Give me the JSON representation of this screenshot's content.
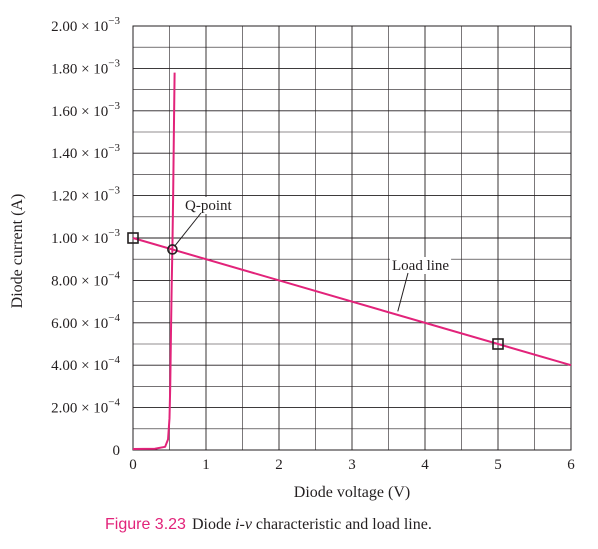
{
  "chart_data": {
    "type": "line",
    "title": "",
    "xlabel": "Diode voltage (V)",
    "ylabel": "Diode current (A)",
    "xlim": [
      0,
      6
    ],
    "ylim": [
      0,
      0.002
    ],
    "grid": true,
    "x_ticks": [
      "0",
      "1",
      "2",
      "3",
      "4",
      "5",
      "6"
    ],
    "y_ticks": [
      {
        "mant": "0",
        "exp": ""
      },
      {
        "mant": "2.00 × 10",
        "exp": "−4"
      },
      {
        "mant": "4.00 × 10",
        "exp": "−4"
      },
      {
        "mant": "6.00 × 10",
        "exp": "−4"
      },
      {
        "mant": "8.00 × 10",
        "exp": "−4"
      },
      {
        "mant": "1.00 × 10",
        "exp": "−3"
      },
      {
        "mant": "1.20 × 10",
        "exp": "−3"
      },
      {
        "mant": "1.40 × 10",
        "exp": "−3"
      },
      {
        "mant": "1.60 × 10",
        "exp": "−3"
      },
      {
        "mant": "1.80 × 10",
        "exp": "−3"
      },
      {
        "mant": "2.00 × 10",
        "exp": "−3"
      }
    ],
    "series": [
      {
        "color": "#e2237a",
        "points": [
          [
            0,
            5e-06
          ],
          [
            0.3,
            6e-06
          ],
          [
            0.44,
            1.5e-05
          ],
          [
            0.48,
            5e-05
          ],
          [
            0.5,
            0.00015
          ],
          [
            0.51,
            0.0003
          ],
          [
            0.52,
            0.00055
          ],
          [
            0.53,
            0.00078
          ],
          [
            0.54,
            0.00096
          ],
          [
            0.55,
            0.0012
          ],
          [
            0.56,
            0.0015
          ],
          [
            0.57,
            0.00178
          ]
        ]
      },
      {
        "color": "#e2237a",
        "points": [
          [
            0,
            0.001
          ],
          [
            6,
            0.0004
          ]
        ]
      }
    ],
    "markers": [
      {
        "x": 0,
        "y": 0.001,
        "shape": "square"
      },
      {
        "x": 5,
        "y": 0.0005,
        "shape": "square"
      },
      {
        "x": 0.54,
        "y": 0.000946,
        "shape": "circle"
      }
    ],
    "annotations": [
      {
        "text": "Q-point",
        "target": [
          0.54,
          0.000946
        ]
      },
      {
        "text": "Load line",
        "target": [
          3.6,
          0.00064
        ]
      }
    ]
  },
  "caption": {
    "label": "Figure 3.23",
    "text_before": "Diode ",
    "text_italic": "i-v",
    "text_after": " characteristic and load line."
  }
}
